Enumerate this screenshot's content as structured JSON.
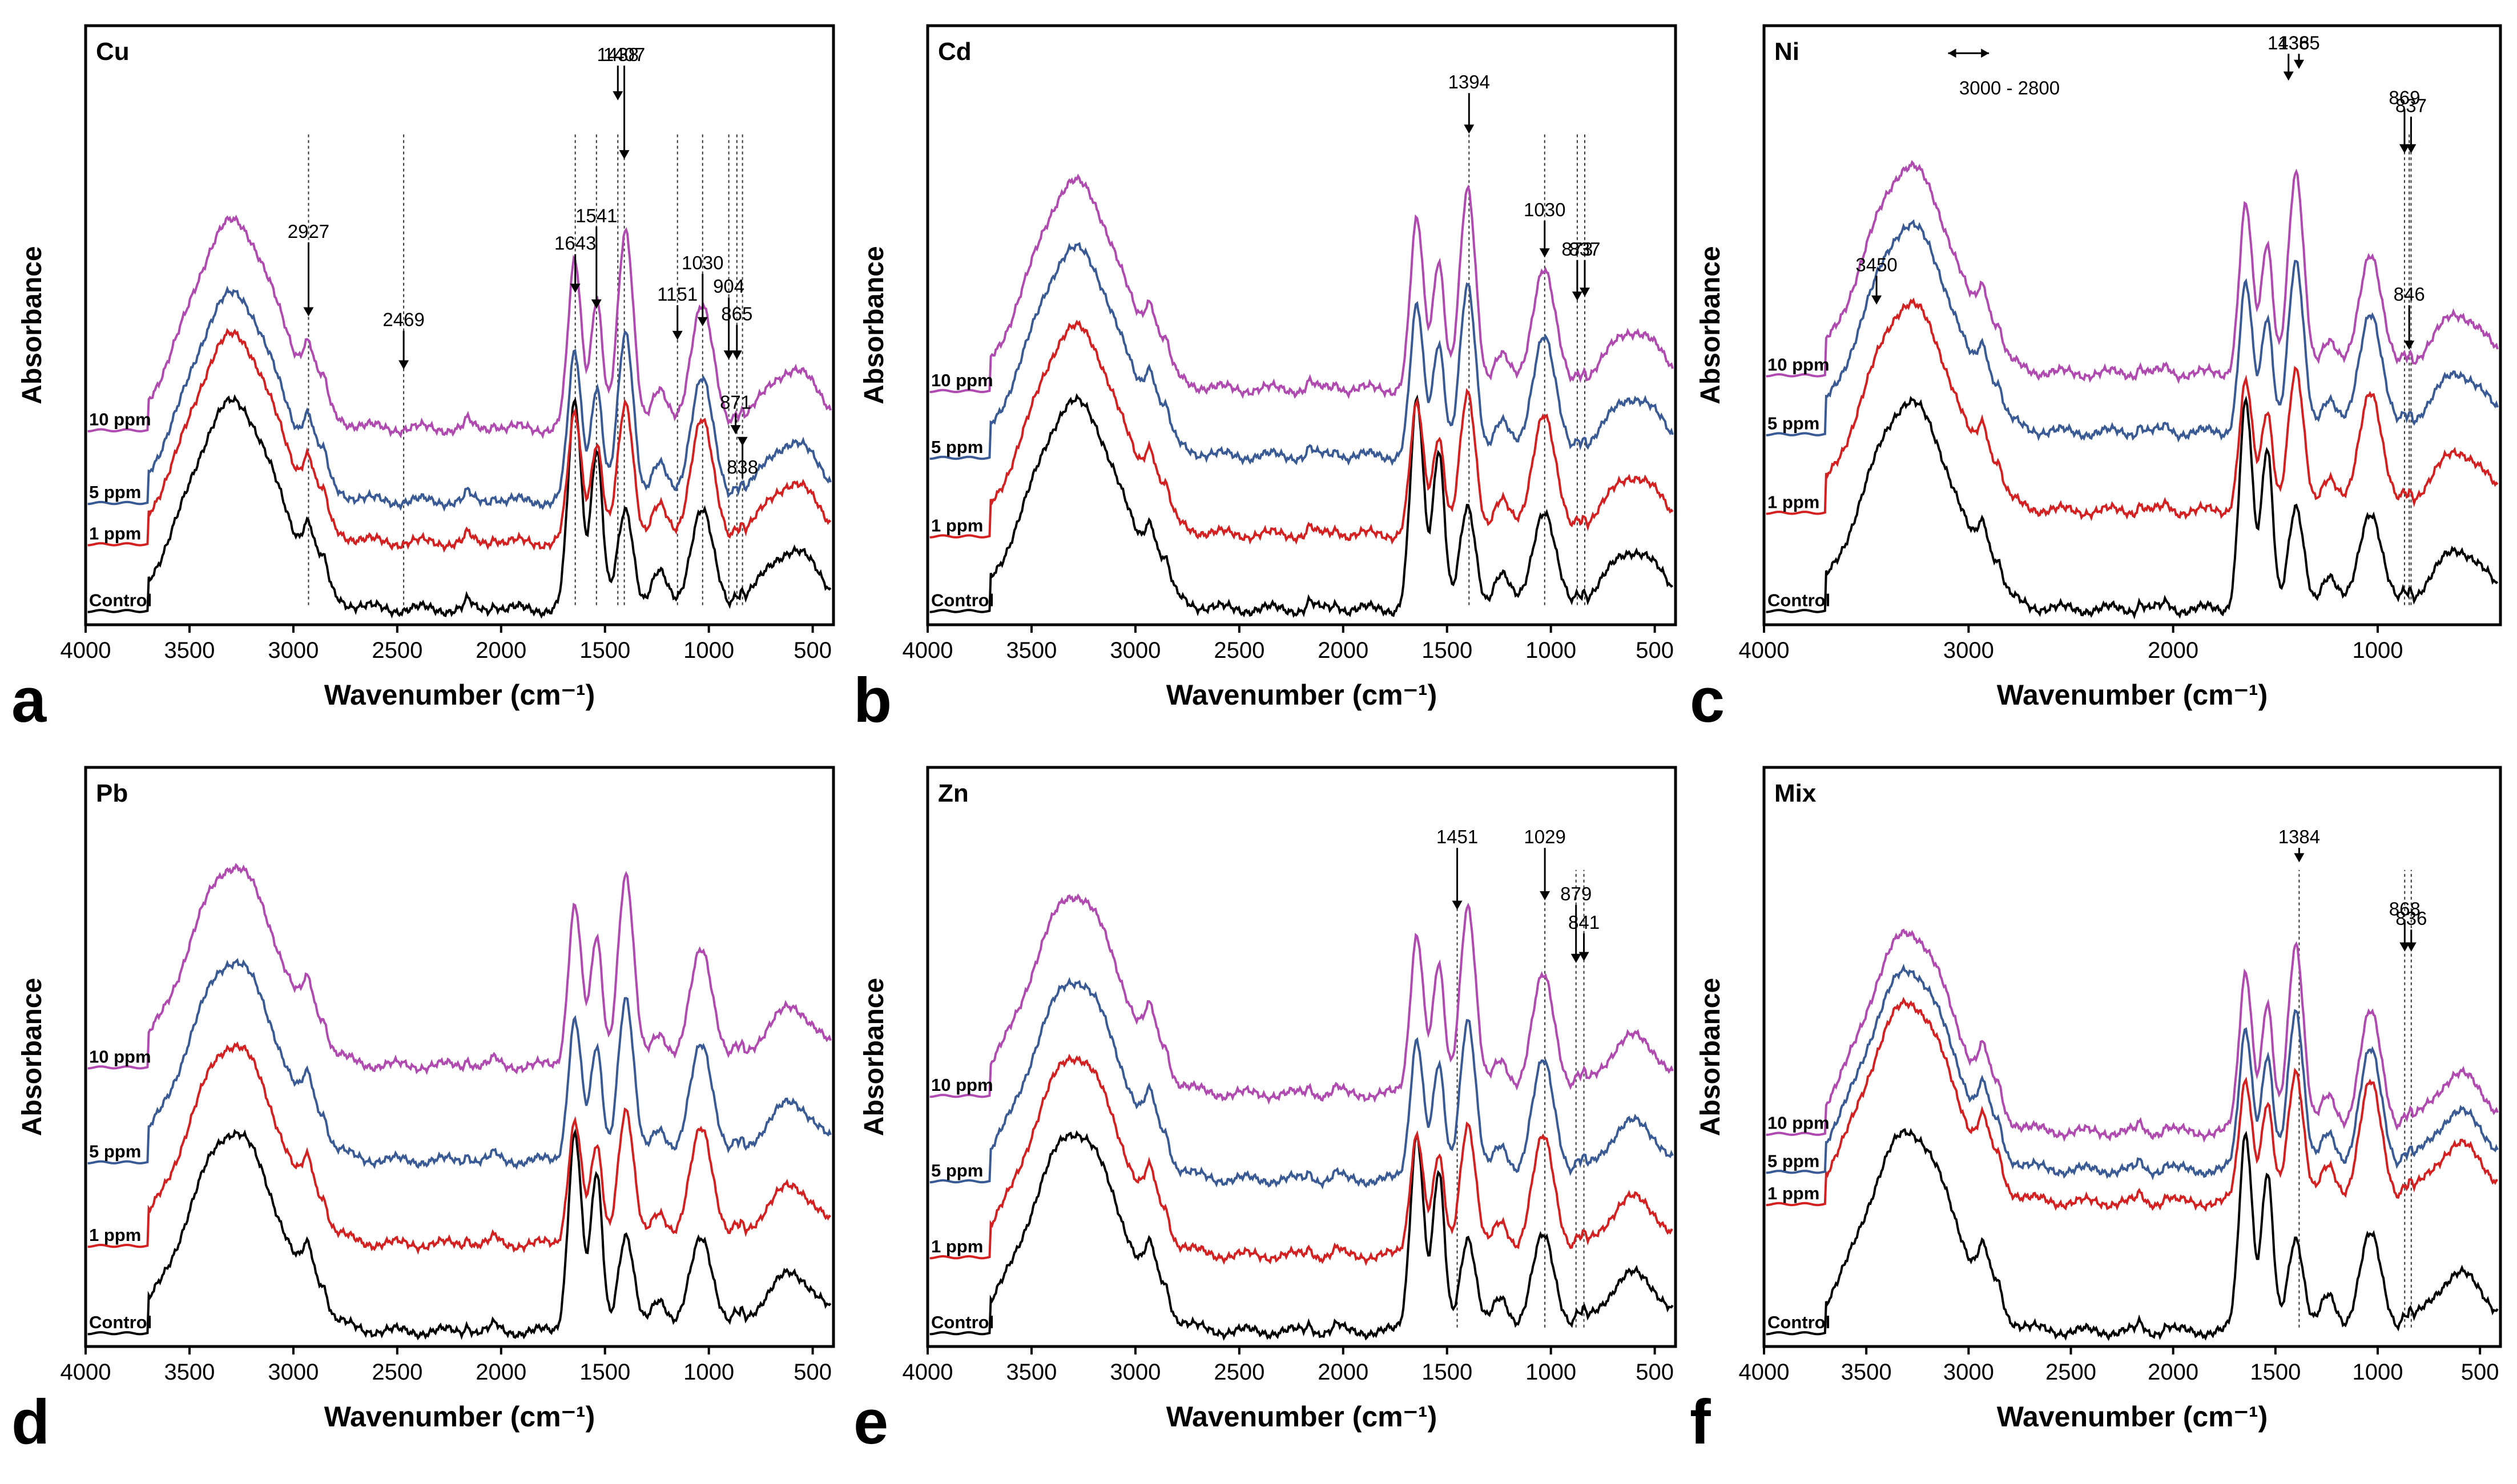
{
  "figure": {
    "x_axis_label": "Wavenumber (cm⁻¹)",
    "y_axis_label": "Absorbance",
    "series_colors": {
      "Control": "#000000",
      "1 ppm": "#d42020",
      "5 ppm": "#3a5a96",
      "10 ppm": "#b04ab0"
    },
    "annotation_line_color": "#333333"
  },
  "chart_data": [
    {
      "type": "line",
      "panel": "a",
      "title": "Cu",
      "xlabel": "Wavenumber (cm⁻¹)",
      "ylabel": "Absorbance",
      "xlim": [
        4000,
        400
      ],
      "x_reversed": true,
      "xticks": [
        4000,
        3500,
        3000,
        2500,
        2000,
        1500,
        1000,
        500
      ],
      "series": [
        {
          "name": "Control",
          "label": "Control",
          "offset": 0
        },
        {
          "name": "1 ppm",
          "label": "1 ppm",
          "offset": 0.34
        },
        {
          "name": "5 ppm",
          "label": "5 ppm",
          "offset": 0.55
        },
        {
          "name": "10 ppm",
          "label": "10 ppm",
          "offset": 0.92
        }
      ],
      "annotations": [
        {
          "text": "2927",
          "x": 2927,
          "ty": 1.92,
          "ay": 1.52
        },
        {
          "text": "2469",
          "x": 2469,
          "ty": 1.47,
          "ay": 1.25
        },
        {
          "text": "1643",
          "x": 1643,
          "ty": 1.86,
          "ay": 1.64
        },
        {
          "text": "1541",
          "x": 1541,
          "ty": 2.0,
          "ay": 1.56
        },
        {
          "text": "1438",
          "x": 1438,
          "ty": 2.82,
          "ay": 2.62
        },
        {
          "text": "1407",
          "x": 1407,
          "ty": 2.82,
          "ay": 2.32
        },
        {
          "text": "1151",
          "x": 1151,
          "ty": 1.6,
          "ay": 1.4
        },
        {
          "text": "1030",
          "x": 1030,
          "ty": 1.76,
          "ay": 1.47
        },
        {
          "text": "904",
          "x": 904,
          "ty": 1.64,
          "ay": 1.3
        },
        {
          "text": "865",
          "x": 865,
          "ty": 1.5,
          "ay": 1.3
        },
        {
          "text": "871",
          "x": 871,
          "ty": 1.05,
          "ay": 0.92
        },
        {
          "text": "838",
          "x": 838,
          "ty": 0.72,
          "ay": 0.86
        }
      ],
      "vlines": [
        2927,
        2469,
        1643,
        1541,
        1438,
        1407,
        1151,
        1030,
        904,
        865,
        838
      ],
      "arrow_text": ""
    },
    {
      "type": "line",
      "panel": "b",
      "title": "Cd",
      "xlabel": "Wavenumber (cm⁻¹)",
      "ylabel": "Absorbance",
      "xlim": [
        4000,
        400
      ],
      "x_reversed": true,
      "xticks": [
        4000,
        3500,
        3000,
        2500,
        2000,
        1500,
        1000,
        500
      ],
      "series": [
        {
          "name": "Control",
          "label": "Control",
          "offset": 0
        },
        {
          "name": "1 ppm",
          "label": "1 ppm",
          "offset": 0.38
        },
        {
          "name": "5 ppm",
          "label": "5 ppm",
          "offset": 0.78
        },
        {
          "name": "10 ppm",
          "label": "10 ppm",
          "offset": 1.12
        }
      ],
      "annotations": [
        {
          "text": "1394",
          "x": 1394,
          "ty": 2.68,
          "ay": 2.45
        },
        {
          "text": "1030",
          "x": 1030,
          "ty": 2.03,
          "ay": 1.82
        },
        {
          "text": "873",
          "x": 873,
          "ty": 1.83,
          "ay": 1.6
        },
        {
          "text": "837",
          "x": 837,
          "ty": 1.83,
          "ay": 1.62
        }
      ],
      "vlines": [
        1394,
        1030,
        873,
        837
      ],
      "arrow_text": ""
    },
    {
      "type": "line",
      "panel": "c",
      "title": "Ni",
      "xlabel": "Wavenumber (cm⁻¹)",
      "ylabel": "Absorbance",
      "xlim": [
        4000,
        400
      ],
      "x_reversed": true,
      "xticks": [
        4000,
        3000,
        2000,
        1000
      ],
      "series": [
        {
          "name": "Control",
          "label": "Control",
          "offset": 0
        },
        {
          "name": "1 ppm",
          "label": "1 ppm",
          "offset": 0.5
        },
        {
          "name": "5 ppm",
          "label": "5 ppm",
          "offset": 0.9
        },
        {
          "name": "10 ppm",
          "label": "10 ppm",
          "offset": 1.2
        }
      ],
      "annotations": [
        {
          "text": "1436",
          "x": 1436,
          "ty": 2.88,
          "ay": 2.72
        },
        {
          "text": "1385",
          "x": 1385,
          "ty": 2.88,
          "ay": 2.78
        },
        {
          "text": "869",
          "x": 869,
          "ty": 2.6,
          "ay": 2.35
        },
        {
          "text": "837",
          "x": 837,
          "ty": 2.56,
          "ay": 2.35
        },
        {
          "text": "3450",
          "x": 3450,
          "ty": 1.75,
          "ay": 1.58
        },
        {
          "text": "846",
          "x": 846,
          "ty": 1.6,
          "ay": 1.35
        }
      ],
      "vlines": [
        869,
        846,
        837
      ],
      "arrow_text": "3000 - 2800"
    },
    {
      "type": "line",
      "panel": "d",
      "title": "Pb",
      "xlabel": "Wavenumber (cm⁻¹)",
      "ylabel": "Absorbance",
      "xlim": [
        4000,
        400
      ],
      "x_reversed": true,
      "xticks": [
        4000,
        3500,
        3000,
        2500,
        2000,
        1500,
        1000,
        500
      ],
      "series": [
        {
          "name": "Control",
          "label": "Control",
          "offset": 0
        },
        {
          "name": "1 ppm",
          "label": "1 ppm",
          "offset": 0.46
        },
        {
          "name": "5 ppm",
          "label": "5 ppm",
          "offset": 0.9
        },
        {
          "name": "10 ppm",
          "label": "10 ppm",
          "offset": 1.4
        }
      ],
      "annotations": [],
      "vlines": [],
      "arrow_text": ""
    },
    {
      "type": "line",
      "panel": "e",
      "title": "Zn",
      "xlabel": "Wavenumber (cm⁻¹)",
      "ylabel": "Absorbance",
      "xlim": [
        4000,
        400
      ],
      "x_reversed": true,
      "xticks": [
        4000,
        3500,
        3000,
        2500,
        2000,
        1500,
        1000,
        500
      ],
      "series": [
        {
          "name": "Control",
          "label": "Control",
          "offset": 0
        },
        {
          "name": "1 ppm",
          "label": "1 ppm",
          "offset": 0.4
        },
        {
          "name": "5 ppm",
          "label": "5 ppm",
          "offset": 0.8
        },
        {
          "name": "10 ppm",
          "label": "10 ppm",
          "offset": 1.25
        }
      ],
      "annotations": [
        {
          "text": "1451",
          "x": 1451,
          "ty": 2.6,
          "ay": 2.25
        },
        {
          "text": "1029",
          "x": 1029,
          "ty": 2.6,
          "ay": 2.3
        },
        {
          "text": "879",
          "x": 879,
          "ty": 2.3,
          "ay": 1.97
        },
        {
          "text": "841",
          "x": 841,
          "ty": 2.15,
          "ay": 1.98
        }
      ],
      "vlines": [
        1451,
        1029,
        879,
        841
      ],
      "arrow_text": ""
    },
    {
      "type": "line",
      "panel": "f",
      "title": "Mix",
      "xlabel": "Wavenumber (cm⁻¹)",
      "ylabel": "Absorbance",
      "xlim": [
        4000,
        400
      ],
      "x_reversed": true,
      "xticks": [
        4000,
        3500,
        3000,
        2500,
        2000,
        1500,
        1000,
        500
      ],
      "series": [
        {
          "name": "Control",
          "label": "Control",
          "offset": 0
        },
        {
          "name": "1 ppm",
          "label": "1 ppm",
          "offset": 0.68
        },
        {
          "name": "5 ppm",
          "label": "5 ppm",
          "offset": 0.85
        },
        {
          "name": "10 ppm",
          "label": "10 ppm",
          "offset": 1.05
        }
      ],
      "annotations": [
        {
          "text": "1384",
          "x": 1384,
          "ty": 2.6,
          "ay": 2.5
        },
        {
          "text": "868",
          "x": 868,
          "ty": 2.22,
          "ay": 2.03
        },
        {
          "text": "836",
          "x": 836,
          "ty": 2.17,
          "ay": 2.03
        }
      ],
      "vlines": [
        1384,
        868,
        836
      ],
      "arrow_text": ""
    }
  ]
}
